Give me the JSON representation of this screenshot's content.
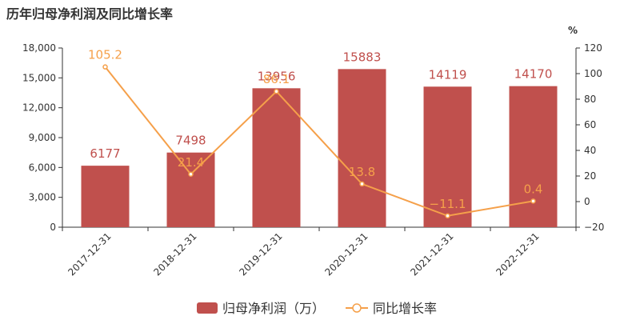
{
  "page": {
    "title": "历年归母净利润及同比增长率"
  },
  "chart_data": {
    "type": "bar",
    "categories": [
      "2017-12-31",
      "2018-12-31",
      "2019-12-31",
      "2020-12-31",
      "2021-12-31",
      "2022-12-31"
    ],
    "series": [
      {
        "name": "归母净利润（万）",
        "type": "bar",
        "axis": "left",
        "color": "#c0504d",
        "values": [
          6177,
          7498,
          13956,
          15883,
          14119,
          14170
        ],
        "labels": [
          "6177",
          "7498",
          "13956",
          "15883",
          "14119",
          "14170"
        ]
      },
      {
        "name": "同比增长率",
        "type": "line",
        "axis": "right",
        "color": "#f5a04a",
        "values": [
          105.2,
          21.4,
          86.1,
          13.8,
          -11.1,
          0.4
        ],
        "labels": [
          "105.2",
          "21.4",
          "86.1",
          "13.8",
          "−11.1",
          "0.4"
        ]
      }
    ],
    "y_left": {
      "ylim": [
        0,
        18000
      ],
      "ticks": [
        0,
        3000,
        6000,
        9000,
        12000,
        15000,
        18000
      ],
      "tick_labels": [
        "0",
        "3,000",
        "6,000",
        "9,000",
        "12,000",
        "15,000",
        "18,000"
      ]
    },
    "y_right": {
      "unit": "%",
      "ylim": [
        -20,
        120
      ],
      "ticks": [
        -20,
        0,
        20,
        40,
        60,
        80,
        100,
        120
      ],
      "tick_labels": [
        "−20",
        "0",
        "20",
        "40",
        "60",
        "80",
        "100",
        "120"
      ]
    },
    "grid": false,
    "legend": {
      "position": "bottom-center",
      "items": [
        "归母净利润（万）",
        "同比增长率"
      ]
    }
  }
}
